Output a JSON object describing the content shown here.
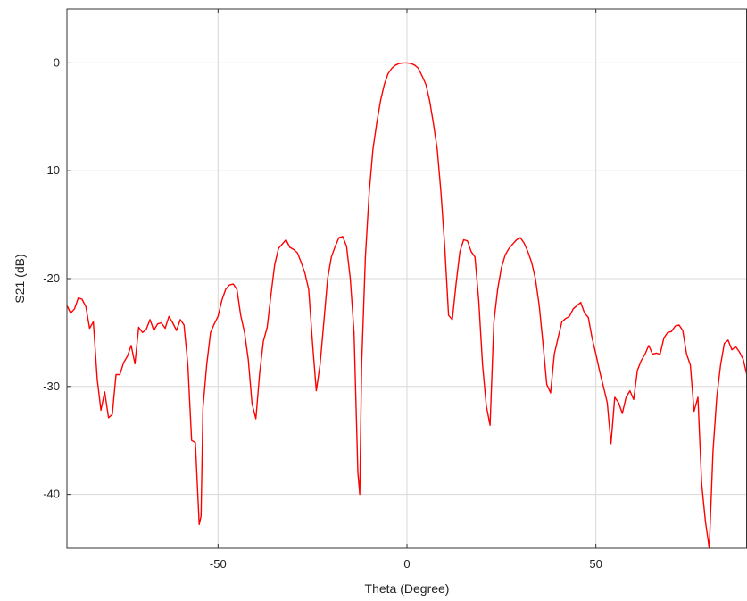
{
  "chart_data": {
    "type": "line",
    "title": "",
    "xlabel": "Theta (Degree)",
    "ylabel": "S21 (dB)",
    "xlim": [
      -90,
      90
    ],
    "ylim": [
      -45,
      5
    ],
    "xticks": [
      -50,
      0,
      50
    ],
    "yticks": [
      0,
      -10,
      -20,
      -30,
      -40
    ],
    "grid": true,
    "legend": "none",
    "series": [
      {
        "color": "#ff0000",
        "x": [
          -90,
          -89,
          -88,
          -87,
          -86,
          -85,
          -84,
          -83,
          -82,
          -81,
          -80,
          -79,
          -78,
          -77,
          -76,
          -75,
          -74,
          -73,
          -72,
          -71,
          -70,
          -69,
          -68,
          -67,
          -66,
          -65,
          -64,
          -63,
          -62,
          -61,
          -60,
          -59,
          -58,
          -57,
          -56,
          -55,
          -54.5,
          -54,
          -53,
          -52,
          -51,
          -50,
          -49,
          -48,
          -47,
          -46,
          -45,
          -44,
          -43,
          -42,
          -41,
          -40,
          -39,
          -38,
          -37,
          -36,
          -35,
          -34,
          -33,
          -32,
          -31,
          -30,
          -29,
          -28,
          -27,
          -26,
          -25,
          -24,
          -23,
          -22,
          -21,
          -20,
          -19,
          -18,
          -17,
          -16,
          -15,
          -14,
          -13,
          -12.5,
          -12,
          -11,
          -10,
          -9,
          -8,
          -7,
          -6,
          -5,
          -4,
          -3,
          -2,
          -1,
          0,
          1,
          2,
          3,
          4,
          5,
          6,
          7,
          8,
          9,
          10,
          11,
          12,
          13,
          14,
          15,
          16,
          17,
          18,
          19,
          20,
          21,
          22,
          23,
          24,
          25,
          26,
          27,
          28,
          29,
          30,
          31,
          32,
          33,
          34,
          35,
          36,
          37,
          38,
          39,
          40,
          41,
          42,
          43,
          44,
          45,
          46,
          47,
          48,
          49,
          50,
          51,
          52,
          53,
          54,
          55,
          56,
          57,
          58,
          59,
          60,
          61,
          62,
          63,
          64,
          65,
          66,
          67,
          68,
          69,
          70,
          71,
          72,
          73,
          74,
          75,
          76,
          77,
          78,
          79,
          80,
          81,
          82,
          83,
          84,
          85,
          86,
          87,
          88,
          89,
          90
        ],
        "y": [
          -22.5,
          -23.2,
          -22.8,
          -21.8,
          -21.9,
          -22.6,
          -24.6,
          -24.0,
          -29.3,
          -32.2,
          -30.5,
          -32.9,
          -32.6,
          -28.9,
          -28.9,
          -27.8,
          -27.2,
          -26.2,
          -27.9,
          -24.5,
          -25.0,
          -24.7,
          -23.8,
          -24.8,
          -24.2,
          -24.1,
          -24.6,
          -23.5,
          -24.1,
          -24.8,
          -23.8,
          -24.3,
          -28.0,
          -35.0,
          -35.2,
          -42.8,
          -42.0,
          -32.0,
          -28.0,
          -25.0,
          -24.2,
          -23.5,
          -22.0,
          -21.0,
          -20.6,
          -20.5,
          -21.0,
          -23.4,
          -25.0,
          -27.5,
          -31.6,
          -33.0,
          -28.8,
          -25.8,
          -24.5,
          -21.5,
          -18.7,
          -17.2,
          -16.8,
          -16.4,
          -17.1,
          -17.3,
          -17.6,
          -18.5,
          -19.5,
          -21.0,
          -26.0,
          -30.4,
          -28.0,
          -24.0,
          -20.0,
          -18.0,
          -17.0,
          -16.2,
          -16.1,
          -17.0,
          -20.0,
          -25.0,
          -38.0,
          -40.0,
          -28.0,
          -18.0,
          -12.0,
          -8.0,
          -5.6,
          -3.5,
          -2.0,
          -1.0,
          -0.5,
          -0.2,
          -0.05,
          0.0,
          0.0,
          -0.05,
          -0.2,
          -0.5,
          -1.2,
          -2.0,
          -3.5,
          -5.6,
          -8.0,
          -12.0,
          -17.0,
          -23.4,
          -23.8,
          -20.5,
          -17.5,
          -16.4,
          -16.5,
          -17.5,
          -18.0,
          -22.0,
          -28.0,
          -31.8,
          -33.6,
          -24.0,
          -21.0,
          -19.0,
          -17.8,
          -17.2,
          -16.8,
          -16.4,
          -16.2,
          -16.7,
          -17.5,
          -18.5,
          -20.0,
          -22.5,
          -26.0,
          -29.8,
          -30.6,
          -27.0,
          -25.5,
          -24.0,
          -23.7,
          -23.5,
          -22.8,
          -22.5,
          -22.2,
          -23.2,
          -23.6,
          -25.5,
          -27.0,
          -28.6,
          -30.0,
          -31.5,
          -35.3,
          -31.0,
          -31.5,
          -32.5,
          -31.0,
          -30.4,
          -31.2,
          -28.5,
          -27.6,
          -27.0,
          -26.2,
          -27.0,
          -26.9,
          -27.0,
          -25.5,
          -25.0,
          -24.9,
          -24.4,
          -24.3,
          -24.8,
          -27.0,
          -28.0,
          -32.3,
          -31.0,
          -39.0,
          -42.5,
          -45.0,
          -36.0,
          -31.0,
          -28.0,
          -26.0,
          -25.7,
          -26.6,
          -26.3,
          -26.8,
          -27.5,
          -29.0
        ]
      }
    ]
  }
}
